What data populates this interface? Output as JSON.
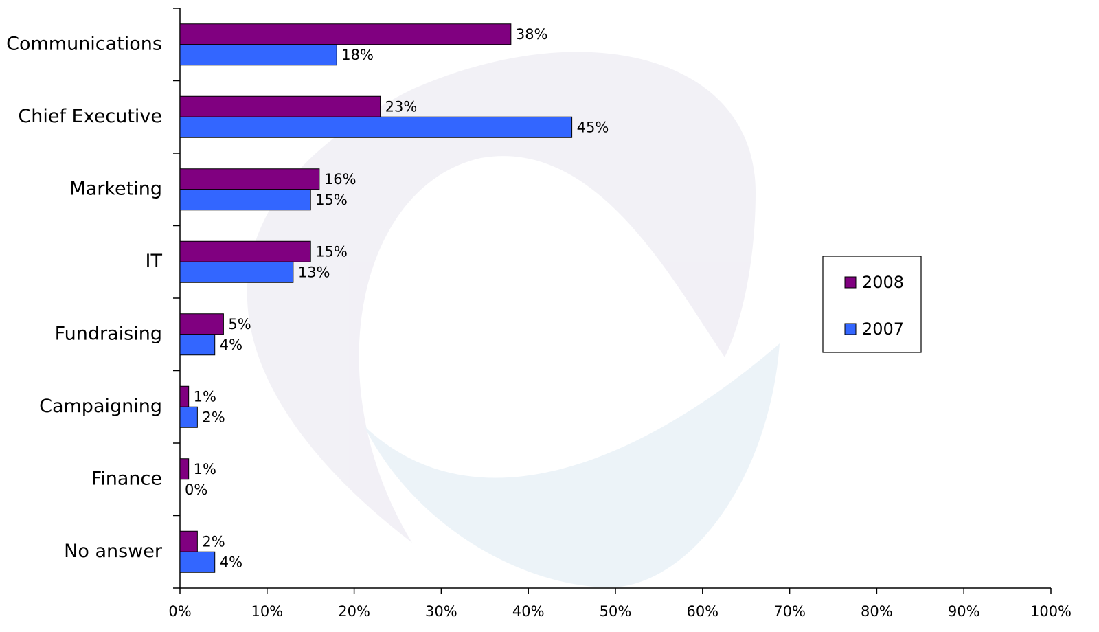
{
  "chart_data": {
    "type": "hbar",
    "categories": [
      "Communications",
      "Chief Executive",
      "Marketing",
      "IT",
      "Fundraising",
      "Campaigning",
      "Finance",
      "No answer"
    ],
    "series": [
      {
        "name": "2008",
        "color": "#800080",
        "values": [
          38,
          23,
          16,
          15,
          5,
          1,
          1,
          2
        ],
        "value_labels": [
          "38%",
          "23%",
          "16%",
          "15%",
          "5%",
          "1%",
          "1%",
          "2%"
        ]
      },
      {
        "name": "2007",
        "color": "#3366ff",
        "values": [
          18,
          45,
          15,
          13,
          4,
          2,
          0,
          4
        ],
        "value_labels": [
          "18%",
          "45%",
          "15%",
          "13%",
          "4%",
          "2%",
          "0%",
          "4%"
        ]
      }
    ],
    "xlim": [
      0,
      100
    ],
    "xticks": [
      {
        "value": 0,
        "label": "0%"
      },
      {
        "value": 10,
        "label": "10%"
      },
      {
        "value": 20,
        "label": "20%"
      },
      {
        "value": 30,
        "label": "30%"
      },
      {
        "value": 40,
        "label": "40%"
      },
      {
        "value": 50,
        "label": "50%"
      },
      {
        "value": 60,
        "label": "60%"
      },
      {
        "value": 70,
        "label": "70%"
      },
      {
        "value": 80,
        "label": "80%"
      },
      {
        "value": 90,
        "label": "90%"
      },
      {
        "value": 100,
        "label": "100%"
      }
    ],
    "legend": "right"
  }
}
